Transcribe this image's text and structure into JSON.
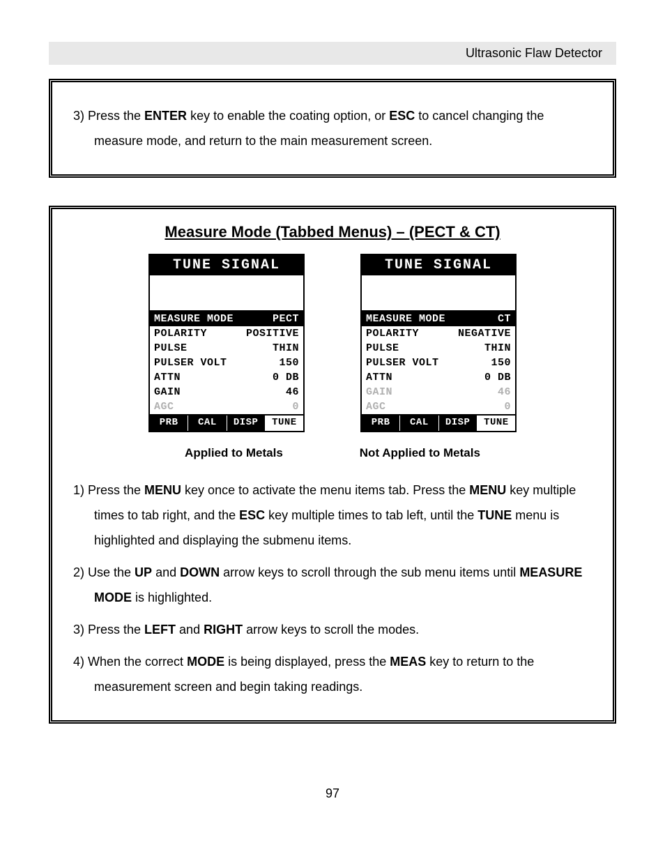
{
  "header": "Ultrasonic Flaw Detector",
  "page_number": "97",
  "box1": {
    "step3_parts": [
      "3)  Press the ",
      "ENTER",
      " key to enable the coating option, or ",
      "ESC",
      " to cancel changing the measure mode, and return to the main measurement screen."
    ]
  },
  "box2": {
    "title": "Measure Mode (Tabbed Menus) – (PECT & CT)",
    "screen_title": "TUNE SIGNAL",
    "screen_left": {
      "rows": [
        {
          "label": "MEASURE MODE",
          "value": "PECT",
          "inverted": true
        },
        {
          "label": "POLARITY",
          "value": "POSITIVE"
        },
        {
          "label": "PULSE",
          "value": "THIN"
        },
        {
          "label": "PULSER VOLT",
          "value": "150"
        },
        {
          "label": "ATTN",
          "value": "0 DB"
        },
        {
          "label": "GAIN",
          "value": "46"
        },
        {
          "label": "AGC",
          "value": "0",
          "dim": true
        }
      ],
      "caption": "Applied to Metals"
    },
    "screen_right": {
      "rows": [
        {
          "label": "MEASURE MODE",
          "value": "CT",
          "inverted": true
        },
        {
          "label": "POLARITY",
          "value": "NEGATIVE"
        },
        {
          "label": "PULSE",
          "value": "THIN"
        },
        {
          "label": "PULSER VOLT",
          "value": "150"
        },
        {
          "label": "ATTN",
          "value": "0 DB"
        },
        {
          "label": "GAIN",
          "value": "46",
          "dim": true
        },
        {
          "label": "AGC",
          "value": "0",
          "dim": true
        }
      ],
      "caption": "Not Applied to Metals"
    },
    "tabs": [
      "PRB",
      "CAL",
      "DISP",
      "TUNE"
    ],
    "active_tab": 3,
    "step1": [
      "1)  Press the ",
      "MENU",
      " key once to activate the menu items tab.  Press the ",
      "MENU",
      " key multiple times to tab right, and the ",
      "ESC",
      " key multiple times to tab left, until the ",
      "TUNE",
      " menu is highlighted and displaying the submenu items."
    ],
    "step2": [
      "2)   Use the ",
      "UP",
      " and ",
      "DOWN",
      " arrow keys to scroll through the sub menu items until ",
      "MEASURE MODE",
      " is highlighted."
    ],
    "step3": [
      "3)   Press the ",
      "LEFT",
      " and ",
      "RIGHT",
      " arrow keys to scroll the modes."
    ],
    "step4": [
      "4)  When the correct ",
      "MODE",
      " is being displayed, press the ",
      "MEAS",
      " key to return to the measurement screen and begin taking readings."
    ]
  }
}
